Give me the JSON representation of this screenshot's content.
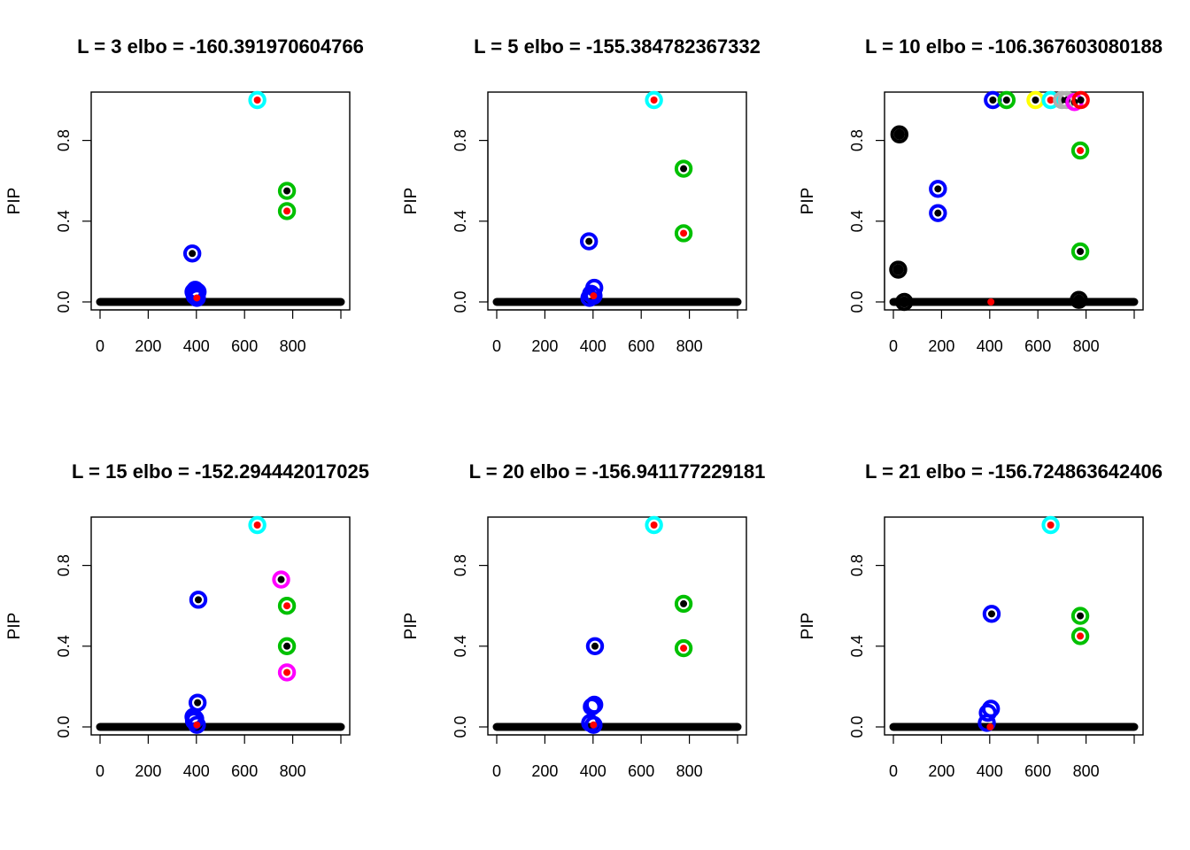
{
  "colors": {
    "baseline": "#000000",
    "cs_palette": [
      "#0000ff",
      "#00c000",
      "#00ffff",
      "#ff00ff",
      "#ffff00",
      "#ff0000",
      "#b0b0b0",
      "#000000"
    ],
    "true_effect": "#ff0000",
    "cs_member": "#000000"
  },
  "chart_data": [
    {
      "type": "scatter",
      "title": "L = 3 elbo = -160.391970604766",
      "xlabel": "",
      "ylabel": "PIP",
      "xlim": [
        0,
        1000
      ],
      "ylim": [
        0,
        1
      ],
      "x_ticks": [
        0,
        200,
        400,
        600,
        800
      ],
      "y_ticks": [
        0.0,
        0.4,
        0.8
      ],
      "baseline": {
        "x_start": 0,
        "x_end": 1000,
        "y": 0.0
      },
      "points": [
        {
          "x": 383,
          "y": 0.24,
          "ring": "#0000ff",
          "center": "#000000"
        },
        {
          "x": 388,
          "y": 0.05,
          "ring": "#0000ff",
          "center": ""
        },
        {
          "x": 395,
          "y": 0.06,
          "ring": "#0000ff",
          "center": ""
        },
        {
          "x": 400,
          "y": 0.04,
          "ring": "#0000ff",
          "center": ""
        },
        {
          "x": 405,
          "y": 0.05,
          "ring": "#0000ff",
          "center": ""
        },
        {
          "x": 393,
          "y": 0.03,
          "ring": "#0000ff",
          "center": ""
        },
        {
          "x": 402,
          "y": 0.02,
          "ring": "#0000ff",
          "center": "#ff0000"
        },
        {
          "x": 653,
          "y": 1.0,
          "ring": "#00ffff",
          "center": "#ff0000"
        },
        {
          "x": 776,
          "y": 0.55,
          "ring": "#00c000",
          "center": "#000000"
        },
        {
          "x": 776,
          "y": 0.45,
          "ring": "#00c000",
          "center": "#ff0000"
        }
      ]
    },
    {
      "type": "scatter",
      "title": "L = 5 elbo = -155.384782367332",
      "xlabel": "",
      "ylabel": "PIP",
      "xlim": [
        0,
        1000
      ],
      "ylim": [
        0,
        1
      ],
      "x_ticks": [
        0,
        200,
        400,
        600,
        800
      ],
      "y_ticks": [
        0.0,
        0.4,
        0.8
      ],
      "baseline": {
        "x_start": 0,
        "x_end": 1000,
        "y": 0.0
      },
      "points": [
        {
          "x": 383,
          "y": 0.3,
          "ring": "#0000ff",
          "center": "#000000"
        },
        {
          "x": 405,
          "y": 0.07,
          "ring": "#0000ff",
          "center": ""
        },
        {
          "x": 392,
          "y": 0.04,
          "ring": "#0000ff",
          "center": ""
        },
        {
          "x": 385,
          "y": 0.02,
          "ring": "#0000ff",
          "center": ""
        },
        {
          "x": 402,
          "y": 0.03,
          "ring": "#0000ff",
          "center": "#ff0000"
        },
        {
          "x": 653,
          "y": 1.0,
          "ring": "#00ffff",
          "center": "#ff0000"
        },
        {
          "x": 776,
          "y": 0.66,
          "ring": "#00c000",
          "center": "#000000"
        },
        {
          "x": 776,
          "y": 0.34,
          "ring": "#00c000",
          "center": "#ff0000"
        }
      ]
    },
    {
      "type": "scatter",
      "title": "L = 10 elbo = -106.367603080188",
      "xlabel": "",
      "ylabel": "PIP",
      "xlim": [
        0,
        1000
      ],
      "ylim": [
        0,
        1
      ],
      "x_ticks": [
        0,
        200,
        400,
        600,
        800
      ],
      "y_ticks": [
        0.0,
        0.4,
        0.8
      ],
      "baseline": {
        "x_start": 0,
        "x_end": 1000,
        "y": 0.0
      },
      "points": [
        {
          "x": 25,
          "y": 0.83,
          "ring": "#000000",
          "center": "#000000"
        },
        {
          "x": 20,
          "y": 0.16,
          "ring": "#000000",
          "center": "#000000"
        },
        {
          "x": 45,
          "y": 0.0,
          "ring": "#000000",
          "center": "#000000"
        },
        {
          "x": 185,
          "y": 0.56,
          "ring": "#0000ff",
          "center": "#000000"
        },
        {
          "x": 185,
          "y": 0.44,
          "ring": "#0000ff",
          "center": "#000000"
        },
        {
          "x": 405,
          "y": 0.0,
          "ring": "",
          "center": "#ff0000"
        },
        {
          "x": 413,
          "y": 1.0,
          "ring": "#0000ff",
          "center": "#000000"
        },
        {
          "x": 470,
          "y": 1.0,
          "ring": "#00c000",
          "center": "#000000"
        },
        {
          "x": 590,
          "y": 1.0,
          "ring": "#ffff00",
          "center": "#000000"
        },
        {
          "x": 653,
          "y": 1.0,
          "ring": "#00ffff",
          "center": "#ff0000"
        },
        {
          "x": 700,
          "y": 1.0,
          "ring": "#b0b0b0",
          "center": "#000000"
        },
        {
          "x": 720,
          "y": 1.0,
          "ring": "#b0b0b0",
          "center": "#000000"
        },
        {
          "x": 752,
          "y": 0.99,
          "ring": "#ff00ff",
          "center": "#000000"
        },
        {
          "x": 778,
          "y": 1.0,
          "ring": "#ff0000",
          "center": "#000000"
        },
        {
          "x": 776,
          "y": 0.75,
          "ring": "#00c000",
          "center": "#ff0000"
        },
        {
          "x": 776,
          "y": 0.25,
          "ring": "#00c000",
          "center": "#000000"
        },
        {
          "x": 770,
          "y": 0.01,
          "ring": "#000000",
          "center": "#000000"
        }
      ]
    },
    {
      "type": "scatter",
      "title": "L = 15 elbo = -152.294442017025",
      "xlabel": "",
      "ylabel": "PIP",
      "xlim": [
        0,
        1000
      ],
      "ylim": [
        0,
        1
      ],
      "x_ticks": [
        0,
        200,
        400,
        600,
        800
      ],
      "y_ticks": [
        0.0,
        0.4,
        0.8
      ],
      "baseline": {
        "x_start": 0,
        "x_end": 1000,
        "y": 0.0
      },
      "points": [
        {
          "x": 408,
          "y": 0.63,
          "ring": "#0000ff",
          "center": "#000000"
        },
        {
          "x": 405,
          "y": 0.12,
          "ring": "#0000ff",
          "center": "#000000"
        },
        {
          "x": 388,
          "y": 0.05,
          "ring": "#0000ff",
          "center": ""
        },
        {
          "x": 395,
          "y": 0.04,
          "ring": "#0000ff",
          "center": ""
        },
        {
          "x": 390,
          "y": 0.03,
          "ring": "#0000ff",
          "center": ""
        },
        {
          "x": 402,
          "y": 0.01,
          "ring": "#0000ff",
          "center": "#ff0000"
        },
        {
          "x": 653,
          "y": 1.0,
          "ring": "#00ffff",
          "center": "#ff0000"
        },
        {
          "x": 752,
          "y": 0.73,
          "ring": "#ff00ff",
          "center": "#000000"
        },
        {
          "x": 776,
          "y": 0.6,
          "ring": "#00c000",
          "center": "#ff0000"
        },
        {
          "x": 776,
          "y": 0.4,
          "ring": "#00c000",
          "center": "#000000"
        },
        {
          "x": 776,
          "y": 0.27,
          "ring": "#ff00ff",
          "center": "#ff0000"
        }
      ]
    },
    {
      "type": "scatter",
      "title": "L = 20 elbo = -156.941177229181",
      "xlabel": "",
      "ylabel": "PIP",
      "xlim": [
        0,
        1000
      ],
      "ylim": [
        0,
        1
      ],
      "x_ticks": [
        0,
        200,
        400,
        600,
        800
      ],
      "y_ticks": [
        0.0,
        0.4,
        0.8
      ],
      "baseline": {
        "x_start": 0,
        "x_end": 1000,
        "y": 0.0
      },
      "points": [
        {
          "x": 408,
          "y": 0.4,
          "ring": "#0000ff",
          "center": "#000000"
        },
        {
          "x": 395,
          "y": 0.1,
          "ring": "#0000ff",
          "center": ""
        },
        {
          "x": 405,
          "y": 0.11,
          "ring": "#0000ff",
          "center": ""
        },
        {
          "x": 388,
          "y": 0.02,
          "ring": "#0000ff",
          "center": ""
        },
        {
          "x": 402,
          "y": 0.01,
          "ring": "#0000ff",
          "center": "#ff0000"
        },
        {
          "x": 653,
          "y": 1.0,
          "ring": "#00ffff",
          "center": "#ff0000"
        },
        {
          "x": 776,
          "y": 0.61,
          "ring": "#00c000",
          "center": "#000000"
        },
        {
          "x": 776,
          "y": 0.39,
          "ring": "#00c000",
          "center": "#ff0000"
        }
      ]
    },
    {
      "type": "scatter",
      "title": "L = 21 elbo = -156.724863642406",
      "xlabel": "",
      "ylabel": "PIP",
      "xlim": [
        0,
        1000
      ],
      "ylim": [
        0,
        1
      ],
      "x_ticks": [
        0,
        200,
        400,
        600,
        800
      ],
      "y_ticks": [
        0.0,
        0.4,
        0.8
      ],
      "baseline": {
        "x_start": 0,
        "x_end": 1000,
        "y": 0.0
      },
      "points": [
        {
          "x": 408,
          "y": 0.56,
          "ring": "#0000ff",
          "center": "#000000"
        },
        {
          "x": 392,
          "y": 0.07,
          "ring": "#0000ff",
          "center": ""
        },
        {
          "x": 405,
          "y": 0.09,
          "ring": "#0000ff",
          "center": ""
        },
        {
          "x": 388,
          "y": 0.02,
          "ring": "#0000ff",
          "center": ""
        },
        {
          "x": 402,
          "y": 0.0,
          "ring": "",
          "center": "#ff0000"
        },
        {
          "x": 653,
          "y": 1.0,
          "ring": "#00ffff",
          "center": "#ff0000"
        },
        {
          "x": 776,
          "y": 0.55,
          "ring": "#00c000",
          "center": "#000000"
        },
        {
          "x": 776,
          "y": 0.45,
          "ring": "#00c000",
          "center": "#ff0000"
        }
      ]
    }
  ]
}
